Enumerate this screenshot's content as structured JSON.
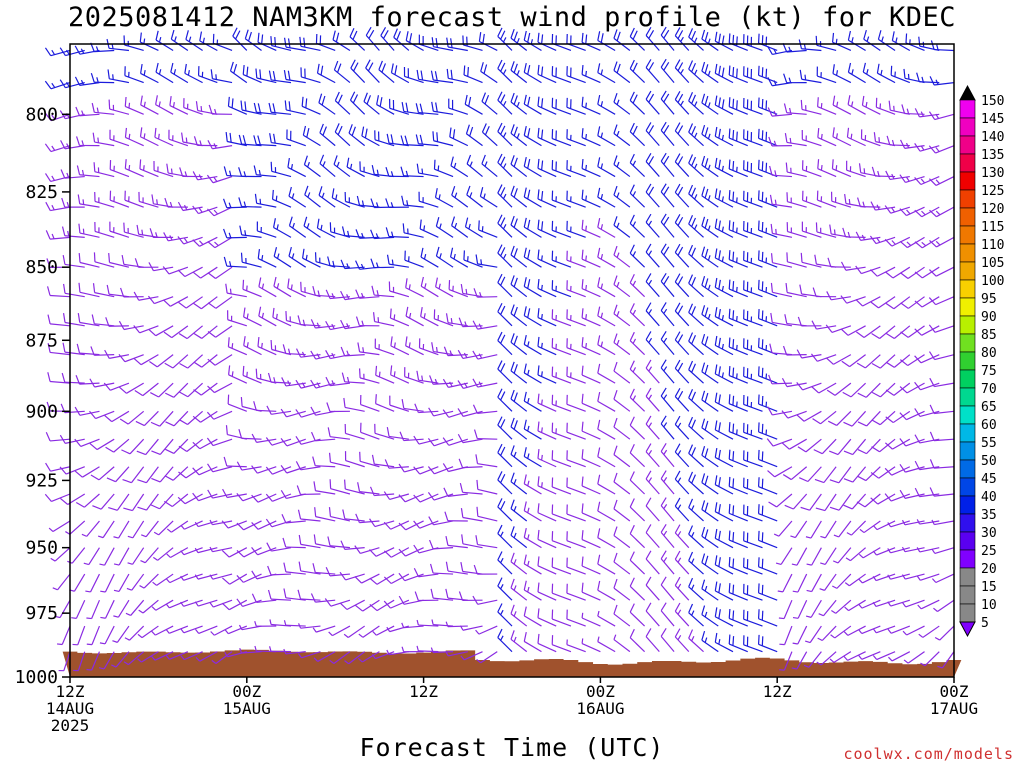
{
  "title": "2025081412 NAM3KM forecast wind profile (kt) for KDEC",
  "credit": "coolwx.com/models",
  "colors": {
    "terrain": "#a0522d",
    "barb_light": "#8a2be2",
    "barb_dark": "#1c1cdc",
    "colorbar": [
      "#8000ff",
      "#5a00f0",
      "#3010ee",
      "#0020e8",
      "#0046e6",
      "#006ae6",
      "#0090e6",
      "#00b8e6",
      "#00e0c8",
      "#00d890",
      "#00d060",
      "#30d030",
      "#70e020",
      "#b8f000",
      "#f0f000",
      "#f8d000",
      "#f0a800",
      "#f09000",
      "#f07800",
      "#f06000",
      "#f04000",
      "#f00000",
      "#f00048",
      "#f00088",
      "#f000c0",
      "#f000f0",
      "#000000"
    ]
  },
  "chart_data": {
    "type": "wind barb time-height cross section",
    "xlabel": "Forecast Time (UTC)",
    "ylabel": "",
    "ylim": [
      1000,
      778
    ],
    "y_ticks": [
      "800",
      "825",
      "850",
      "875",
      "900",
      "925",
      "950",
      "975",
      "1000"
    ],
    "x_ticks": [
      {
        "line1": "12Z",
        "line2": "14AUG",
        "line3": "2025"
      },
      {
        "line1": "00Z",
        "line2": "15AUG",
        "line3": ""
      },
      {
        "line1": "12Z",
        "line2": "",
        "line3": ""
      },
      {
        "line1": "00Z",
        "line2": "16AUG",
        "line3": ""
      },
      {
        "line1": "12Z",
        "line2": "",
        "line3": ""
      },
      {
        "line1": "00Z",
        "line2": "17AUG",
        "line3": ""
      }
    ],
    "xlim_hours": [
      0,
      60
    ],
    "colorbar_labels": [
      "150",
      "145",
      "140",
      "135",
      "130",
      "125",
      "120",
      "115",
      "110",
      "105",
      "100",
      "95",
      "90",
      "85",
      "80",
      "75",
      "70",
      "65",
      "60",
      "55",
      "50",
      "45",
      "40",
      "35",
      "30",
      "25",
      "20",
      "15",
      "10",
      "5"
    ],
    "surface_pressure_range": [
      988,
      996
    ],
    "wind_barbs": "one barb per forecast hour (0-60) at 10-hPa levels from surface to 780 hPa; light wind near surface, westerly 10-20 kt aloft, stronger 15-25 kt northwesterly flow 30-48 h"
  }
}
